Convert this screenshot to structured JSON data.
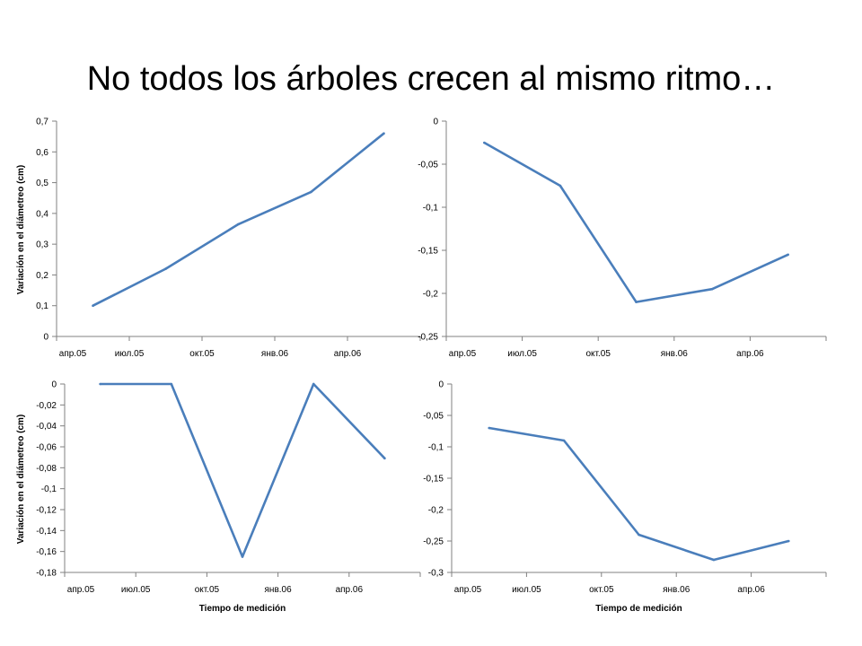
{
  "slide": {
    "title": "No todos los árboles crecen al mismo ritmo…"
  },
  "colors": {
    "line": "#4A7EBB",
    "axis": "#808080"
  },
  "chart_data": [
    {
      "type": "line",
      "categories": [
        "апр.05",
        "июл.05",
        "окт.05",
        "янв.06",
        "апр.06"
      ],
      "x_ticks": [
        "апр.05",
        "июл.05",
        "окт.05",
        "янв.06",
        "апр.06"
      ],
      "series": [
        {
          "values": [
            0.1,
            0.22,
            0.365,
            0.47,
            0.66
          ]
        }
      ],
      "ylim": [
        0,
        0.7
      ],
      "yticks": [
        0,
        0.1,
        0.2,
        0.3,
        0.4,
        0.5,
        0.6,
        0.7
      ],
      "ytick_labels": [
        "0",
        "0,1",
        "0,2",
        "0,3",
        "0,4",
        "0,5",
        "0,6",
        "0,7"
      ],
      "ylabel": "Variación en el diámetreo (cm)",
      "xlabel": "",
      "grid": false
    },
    {
      "type": "line",
      "categories": [
        "апр.05",
        "июл.05",
        "окт.05",
        "янв.06",
        "апр.06"
      ],
      "x_ticks": [
        "апр.05",
        "июл.05",
        "окт.05",
        "янв.06",
        "апр.06"
      ],
      "series": [
        {
          "values": [
            -0.025,
            -0.075,
            -0.21,
            -0.195,
            -0.155
          ]
        }
      ],
      "ylim": [
        -0.25,
        0
      ],
      "yticks": [
        0,
        -0.05,
        -0.1,
        -0.15,
        -0.2,
        -0.25
      ],
      "ytick_labels": [
        "0",
        "-0,05",
        "-0,1",
        "-0,15",
        "-0,2",
        "-0,25"
      ],
      "ylabel": "",
      "xlabel": "",
      "grid": false
    },
    {
      "type": "line",
      "categories": [
        "апр.05",
        "июл.05",
        "окт.05",
        "янв.06",
        "апр.06"
      ],
      "x_ticks": [
        "апр.05",
        "июл.05",
        "окт.05",
        "янв.06",
        "апр.06"
      ],
      "series": [
        {
          "values": [
            0,
            0,
            -0.165,
            0,
            -0.071
          ]
        }
      ],
      "ylim": [
        -0.18,
        0
      ],
      "yticks": [
        0,
        -0.02,
        -0.04,
        -0.06,
        -0.08,
        -0.1,
        -0.12,
        -0.14,
        -0.16,
        -0.18
      ],
      "ytick_labels": [
        "0",
        "-0,02",
        "-0,04",
        "-0,06",
        "-0,08",
        "-0,1",
        "-0,12",
        "-0,14",
        "-0,16",
        "-0,18"
      ],
      "ylabel": "Variación en el diámetreo (cm)",
      "xlabel": "Tiempo de medición",
      "grid": false
    },
    {
      "type": "line",
      "categories": [
        "апр.05",
        "июл.05",
        "окт.05",
        "янв.06",
        "апр.06"
      ],
      "x_ticks": [
        "апр.05",
        "июл.05",
        "окт.05",
        "янв.06",
        "апр.06"
      ],
      "series": [
        {
          "values": [
            -0.07,
            -0.09,
            -0.24,
            -0.28,
            -0.25
          ]
        }
      ],
      "ylim": [
        -0.3,
        0
      ],
      "yticks": [
        0,
        -0.05,
        -0.1,
        -0.15,
        -0.2,
        -0.25,
        -0.3
      ],
      "ytick_labels": [
        "0",
        "-0,05",
        "-0,1",
        "-0,15",
        "-0,2",
        "-0,25",
        "-0,3"
      ],
      "ylabel": "",
      "xlabel": "Tiempo de medición",
      "grid": false
    }
  ]
}
